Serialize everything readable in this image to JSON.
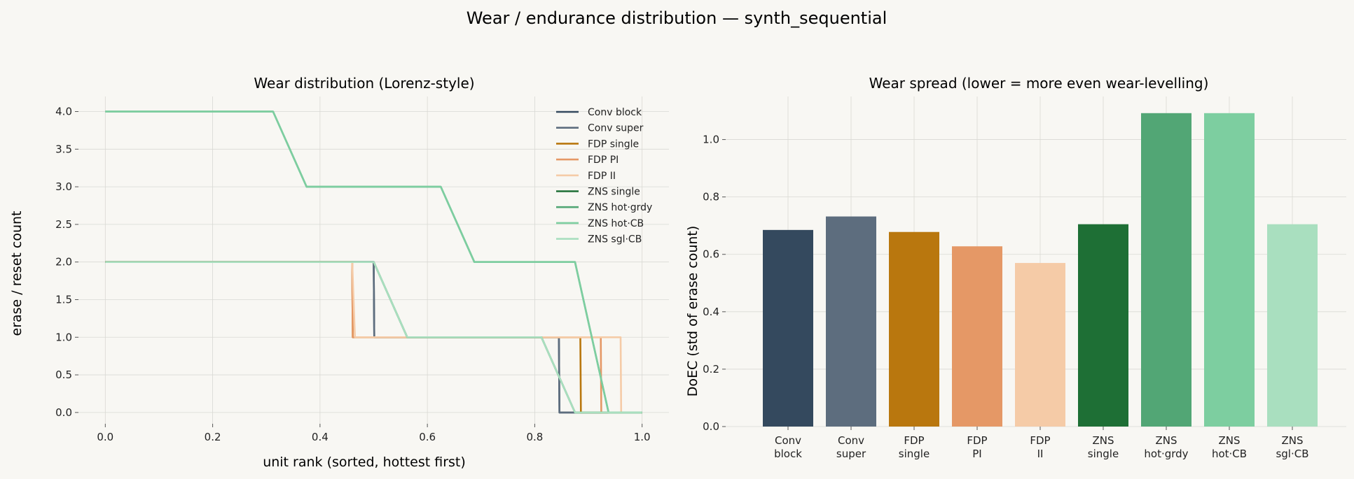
{
  "figure": {
    "title": "Wear / endurance distribution — synth_sequential"
  },
  "chart_data": [
    {
      "type": "line",
      "title": "Wear distribution (Lorenz-style)",
      "xlabel": "unit rank (sorted, hottest first)",
      "ylabel": "erase / reset count",
      "xlim": [
        -0.05,
        1.05
      ],
      "ylim": [
        -0.15,
        4.2
      ],
      "xticks": [
        0.0,
        0.2,
        0.4,
        0.6,
        0.8,
        1.0
      ],
      "xtick_labels": [
        "0.0",
        "0.2",
        "0.4",
        "0.6",
        "0.8",
        "1.0"
      ],
      "yticks": [
        0.0,
        0.5,
        1.0,
        1.5,
        2.0,
        2.5,
        3.0,
        3.5,
        4.0
      ],
      "ytick_labels": [
        "0.0",
        "0.5",
        "1.0",
        "1.5",
        "2.0",
        "2.5",
        "3.0",
        "3.5",
        "4.0"
      ],
      "grid": true,
      "legend_position": "top-right",
      "series": [
        {
          "name": "Conv block",
          "color": "#34495e",
          "x": [
            0.0,
            0.5,
            0.501,
            0.845,
            0.846,
            1.0
          ],
          "y": [
            2,
            2,
            1,
            1,
            0,
            0
          ]
        },
        {
          "name": "Conv super",
          "color": "#5d6d7e",
          "x": [
            0.0,
            0.5,
            0.501,
            0.845,
            0.846,
            1.0
          ],
          "y": [
            2,
            2,
            1,
            1,
            0,
            0
          ]
        },
        {
          "name": "FDP single",
          "color": "#b9770e",
          "x": [
            0.0,
            0.46,
            0.461,
            0.885,
            0.886,
            1.0
          ],
          "y": [
            2,
            2,
            1,
            1,
            0,
            0
          ]
        },
        {
          "name": "FDP PI",
          "color": "#e59866",
          "x": [
            0.0,
            0.46,
            0.461,
            0.923,
            0.924,
            1.0
          ],
          "y": [
            2,
            2,
            1,
            1,
            0,
            0
          ]
        },
        {
          "name": "FDP II",
          "color": "#f5cba7",
          "x": [
            0.0,
            0.46,
            0.465,
            0.96,
            0.961,
            1.0
          ],
          "y": [
            2,
            2,
            1,
            1,
            0,
            0
          ]
        },
        {
          "name": "ZNS single",
          "color": "#1e6f35",
          "x": [
            0.0,
            0.5,
            0.5625,
            0.8125,
            0.875,
            1.0
          ],
          "y": [
            2,
            2,
            1,
            1,
            0,
            0
          ]
        },
        {
          "name": "ZNS hot·grdy",
          "color": "#52a675",
          "x": [
            0.0,
            0.3125,
            0.375,
            0.625,
            0.6875,
            0.875,
            0.9375,
            1.0
          ],
          "y": [
            4,
            4,
            3,
            3,
            2,
            2,
            0,
            0
          ]
        },
        {
          "name": "ZNS hot·CB",
          "color": "#7dcea0",
          "x": [
            0.0,
            0.3125,
            0.375,
            0.625,
            0.6875,
            0.875,
            0.9375,
            1.0
          ],
          "y": [
            4,
            4,
            3,
            3,
            2,
            2,
            0,
            0
          ]
        },
        {
          "name": "ZNS sgl·CB",
          "color": "#a9dfbf",
          "x": [
            0.0,
            0.5,
            0.5625,
            0.8125,
            0.875,
            1.0
          ],
          "y": [
            2,
            2,
            1,
            1,
            0,
            0
          ]
        }
      ]
    },
    {
      "type": "bar",
      "title": "Wear spread (lower = more even wear-levelling)",
      "xlabel": "",
      "ylabel": "DoEC (std of erase count)",
      "ylim": [
        0,
        1.15
      ],
      "yticks": [
        0.0,
        0.2,
        0.4,
        0.6,
        0.8,
        1.0
      ],
      "ytick_labels": [
        "0.0",
        "0.2",
        "0.4",
        "0.6",
        "0.8",
        "1.0"
      ],
      "grid": true,
      "categories": [
        "Conv\nblock",
        "Conv\nsuper",
        "FDP\nsingle",
        "FDP\nPI",
        "FDP\nII",
        "ZNS\nsingle",
        "ZNS\nhot·grdy",
        "ZNS\nhot·CB",
        "ZNS\nsgl·CB"
      ],
      "values": [
        0.685,
        0.732,
        0.678,
        0.628,
        0.57,
        0.705,
        1.092,
        1.092,
        0.705
      ],
      "colors": [
        "#34495e",
        "#5d6d7e",
        "#b9770e",
        "#e59866",
        "#f5cba7",
        "#1e6f35",
        "#52a675",
        "#7dcea0",
        "#a9dfbf"
      ]
    }
  ]
}
